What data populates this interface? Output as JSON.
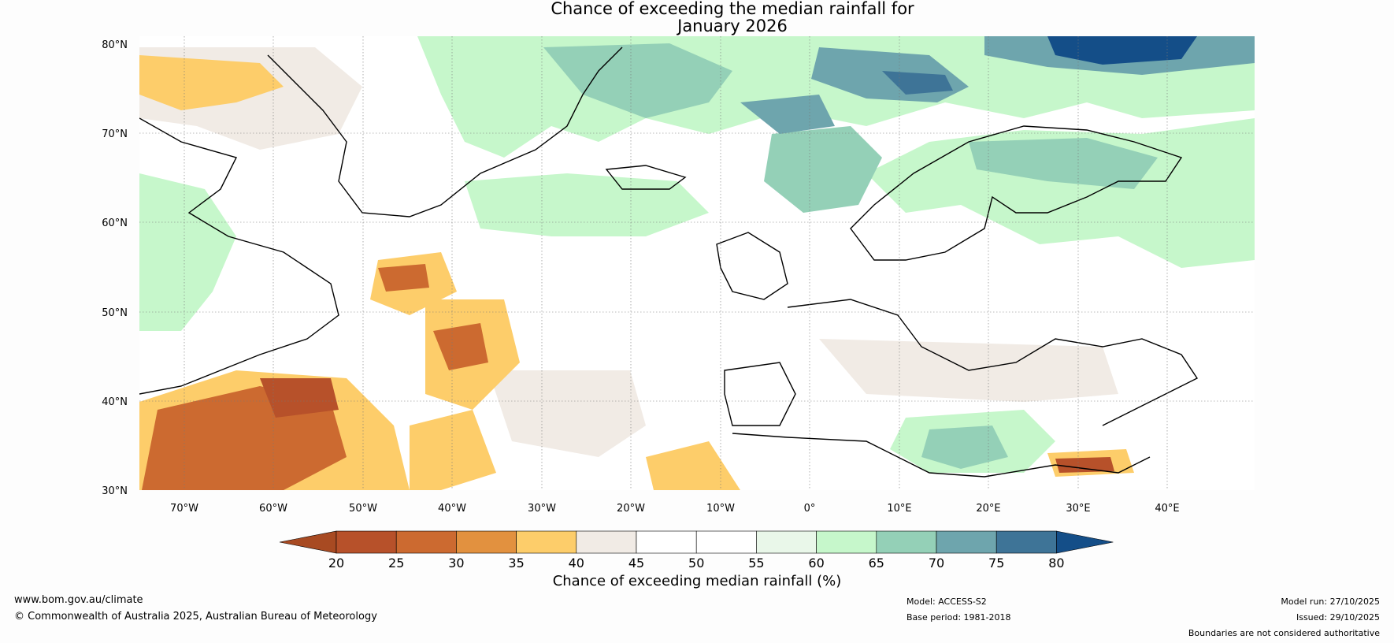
{
  "title": {
    "line1": "Chance of exceeding the median rainfall for",
    "line2": "January 2026"
  },
  "map": {
    "lat_labels": [
      "80°N",
      "70°N",
      "60°N",
      "50°N",
      "40°N",
      "30°N"
    ],
    "lon_labels": [
      "70°W",
      "60°W",
      "50°W",
      "40°W",
      "30°W",
      "20°W",
      "10°W",
      "0°",
      "10°E",
      "20°E",
      "30°E",
      "40°E"
    ]
  },
  "colorbar": {
    "ticks": [
      "20",
      "25",
      "30",
      "35",
      "40",
      "45",
      "50",
      "55",
      "60",
      "65",
      "70",
      "75",
      "80"
    ],
    "colors": [
      "#a84a22",
      "#b7512a",
      "#cc6a30",
      "#e2913f",
      "#fdcd6a",
      "#f1ebe5",
      "#ffffff",
      "#ffffff",
      "#e9f7e9",
      "#c6f7cb",
      "#94d0b7",
      "#6ea5ad",
      "#3e7497",
      "#144e88"
    ],
    "label": "Chance of exceeding median rainfall (%)"
  },
  "footer": {
    "website": "www.bom.gov.au/climate",
    "copyright": "© Commonwealth of Australia 2025, Australian Bureau of Meteorology",
    "model": "Model: ACCESS-S2",
    "base_period": "Base period: 1981-2018",
    "model_run": "Model run: 27/10/2025",
    "issued": "Issued: 29/10/2025",
    "disclaimer": "Boundaries are not considered authoritative"
  }
}
